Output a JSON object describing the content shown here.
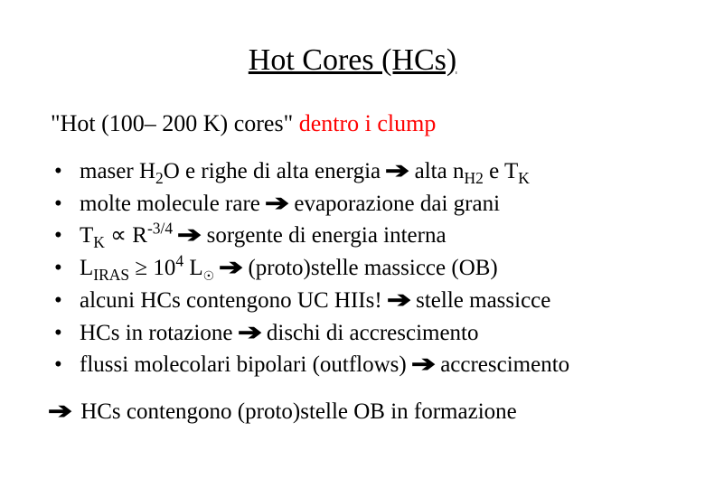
{
  "title": "Hot Cores (HCs)",
  "subtitle": {
    "black": "\"Hot (100– 200 K) cores\" ",
    "red": "dentro i clump"
  },
  "bullets": {
    "b1a": "maser H",
    "b1b": "O e righe di alta energia ",
    "b1c": " alta n",
    "b1d": " e T",
    "b2a": "molte molecule rare ",
    "b2b": " evaporazione dai grani",
    "b3a": "T",
    "b3b": " ∝ R",
    "b3c": " sorgente di energia interna",
    "b4a": "L",
    "b4b": " ≥ 10",
    "b4c": " L",
    "b4d": " (proto)stelle massicce (OB)",
    "b5a": "alcuni HCs contengono UC HIIs! ",
    "b5b": " stelle massicce",
    "b6a": "HCs  in rotazione ",
    "b6b": " dischi di accrescimento",
    "b7a": "flussi molecolari bipolari (outflows) ",
    "b7b": " accrescimento"
  },
  "sub": {
    "two": "2",
    "h2": "H2",
    "k": "K",
    "iras": "IRAS",
    "four": "4",
    "neg34": "-3/4"
  },
  "conclusion": " HCs contengono (proto)stelle OB in formazione",
  "arrow": "➔",
  "colors": {
    "black": "#000000",
    "red": "#ff0000",
    "bg": "#ffffff"
  }
}
